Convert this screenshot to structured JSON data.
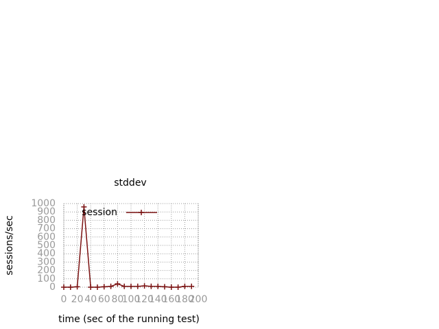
{
  "chart_data": {
    "type": "line",
    "title": "stddev",
    "x_label": "time (sec of the running test)",
    "y_label": "sessions/sec",
    "x": [
      0,
      10,
      20,
      30,
      40,
      50,
      60,
      70,
      80,
      90,
      100,
      110,
      120,
      130,
      140,
      150,
      160,
      170,
      180,
      190
    ],
    "series": [
      {
        "name": "session",
        "color": "#7a1010",
        "values": [
          0,
          0,
          5,
          960,
          0,
          0,
          5,
          10,
          40,
          10,
          10,
          10,
          15,
          10,
          10,
          5,
          0,
          0,
          10,
          10
        ]
      }
    ],
    "xlim": [
      0,
      200
    ],
    "xticks": [
      0,
      20,
      40,
      60,
      80,
      100,
      120,
      140,
      160,
      180,
      200
    ],
    "ylim": [
      0,
      1000
    ],
    "yticks": [
      0,
      100,
      200,
      300,
      400,
      500,
      600,
      700,
      800,
      900,
      1000
    ],
    "grid": true,
    "legend": "top-right"
  }
}
